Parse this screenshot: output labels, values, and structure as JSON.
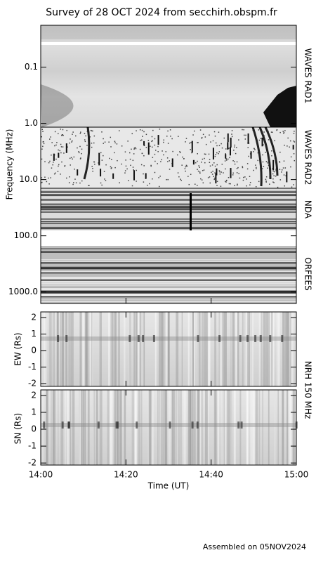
{
  "chart_data": [
    {
      "type": "spectrogram",
      "title": "Survey of 28 OCT 2024 from secchirh.obspm.fr",
      "ylabel": "Frequency (MHz)",
      "log": true,
      "ylim": [
        0.018,
        1600
      ],
      "yticks": [
        {
          "value": 0.1,
          "label": "0.1"
        },
        {
          "value": 1,
          "label": "1.0"
        },
        {
          "value": 10,
          "label": "10.0"
        },
        {
          "value": 100,
          "label": "100.0"
        },
        {
          "value": 1000,
          "label": "1000.0"
        }
      ],
      "panels": [
        "WAVES RAD1",
        "WAVES RAD2",
        "NDA",
        "ORFEES"
      ]
    },
    {
      "type": "image",
      "ylabel": "EW (Rs)",
      "ylim": [
        -2.17,
        2.34
      ],
      "yticks": [
        -2,
        -1,
        0,
        1,
        2
      ]
    },
    {
      "type": "image",
      "ylabel": "SN (Rs)",
      "ylim": [
        -2.12,
        2.33
      ],
      "yticks": [
        -2,
        -1,
        0,
        1,
        2
      ]
    }
  ],
  "instrument": "NRH 150 MHz",
  "xlabel": "Time (UT)",
  "xlim": [
    "14:00",
    "15:00"
  ],
  "xticks": [
    "14:00",
    "14:20",
    "14:40",
    "15:00"
  ],
  "footer": "Assembled on 05NOV2024"
}
